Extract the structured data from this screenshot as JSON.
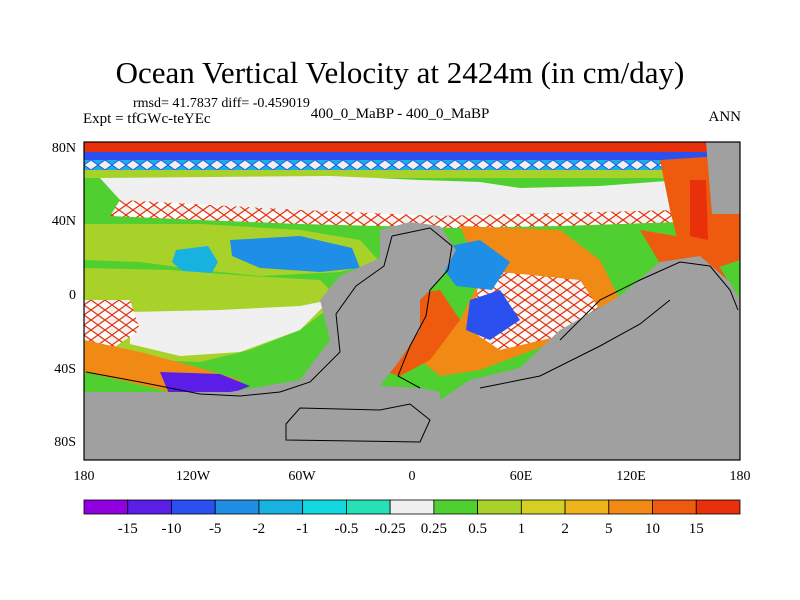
{
  "title": "Ocean Vertical Velocity at 2424m (in cm/day)",
  "stats": "rmsd= 41.7837 diff= -0.459019",
  "experiment": "Expt = tfGWc-teYEc",
  "cases": "400_0_MaBP - 400_0_MaBP",
  "season": "ANN",
  "latitude_ticks": [
    "80N",
    "40N",
    "0",
    "40S",
    "80S"
  ],
  "longitude_ticks": [
    "180",
    "120W",
    "60W",
    "0",
    "60E",
    "120E",
    "180"
  ],
  "land_color": "#a0a0a0",
  "colorbar": {
    "colors": [
      "#9000e0",
      "#5a1ee6",
      "#2b50f0",
      "#1f8ee6",
      "#18b2e0",
      "#14d8e0",
      "#28e0b8",
      "#f0f0f0",
      "#50d030",
      "#a8d22a",
      "#d6d024",
      "#eeb41c",
      "#f08a14",
      "#ee5a0e",
      "#e8300a"
    ],
    "labels": [
      "-15",
      "-10",
      "-5",
      "-2",
      "-1",
      "-0.5",
      "-0.25",
      "0.25",
      "0.5",
      "1",
      "2",
      "5",
      "10",
      "15"
    ]
  }
}
